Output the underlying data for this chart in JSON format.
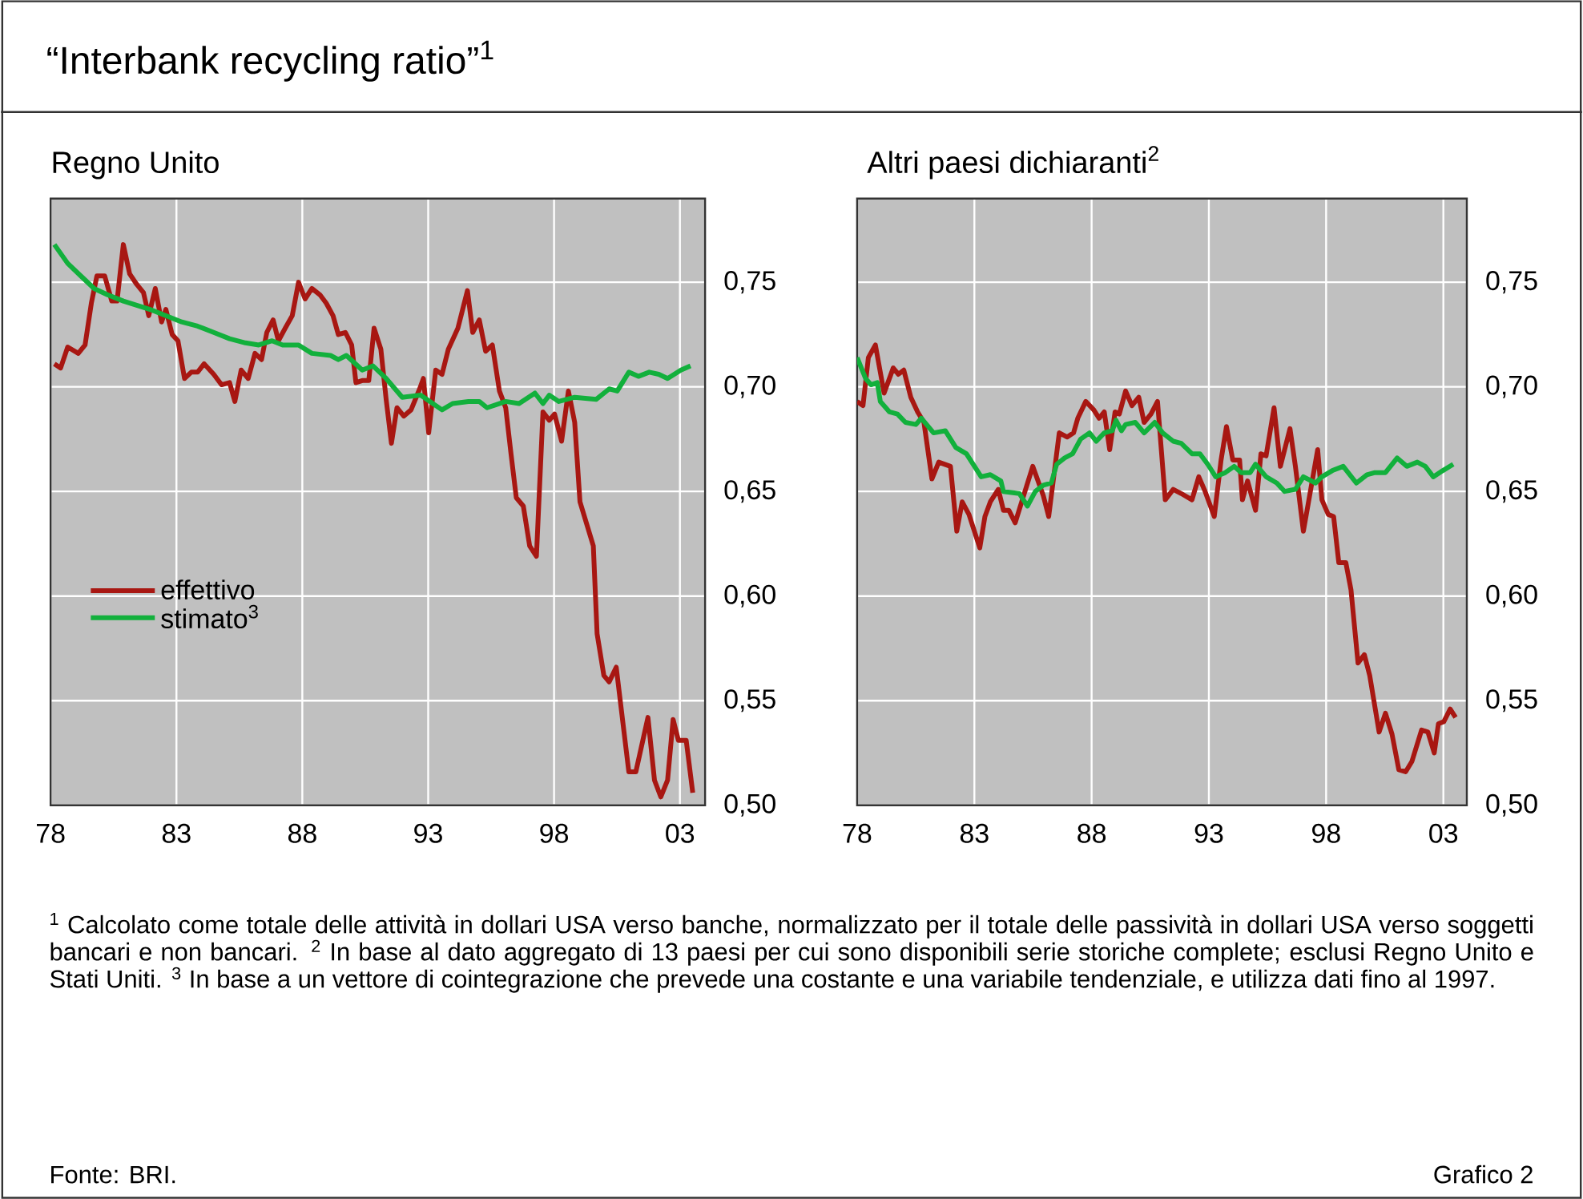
{
  "chart_data": [
    {
      "type": "line",
      "title": "“Interbank recycling ratio”$^{1}$",
      "subtitle": "Regno Unito",
      "xlim": [
        1978,
        2004
      ],
      "xticks": [
        {
          "value": 1978,
          "label": "78"
        },
        {
          "value": 1983,
          "label": "83"
        },
        {
          "value": 1988,
          "label": "88"
        },
        {
          "value": 1993,
          "label": "93"
        },
        {
          "value": 1998,
          "label": "98"
        },
        {
          "value": 2003,
          "label": "03"
        }
      ],
      "ylim": [
        0.5,
        0.79
      ],
      "yticks": [
        {
          "value": 0.5,
          "label": "0,50"
        },
        {
          "value": 0.55,
          "label": "0,55"
        },
        {
          "value": 0.6,
          "label": "0,60"
        },
        {
          "value": 0.65,
          "label": "0,65"
        },
        {
          "value": 0.7,
          "label": "0,70"
        },
        {
          "value": 0.75,
          "label": "0,75"
        }
      ],
      "grid": true,
      "legend": "left",
      "series": [
        {
          "name": "effettivo",
          "color": "#a81712",
          "x": [
            1978.15,
            1978.4,
            1978.68,
            1979.1,
            1979.37,
            1979.62,
            1979.84,
            1980.15,
            1980.43,
            1980.64,
            1980.89,
            1981.14,
            1981.42,
            1981.69,
            1981.9,
            1982.16,
            1982.41,
            1982.58,
            1982.83,
            1983.06,
            1983.32,
            1983.59,
            1983.84,
            1984.1,
            1984.48,
            1984.79,
            1985.11,
            1985.32,
            1985.57,
            1985.85,
            1986.12,
            1986.38,
            1986.59,
            1986.84,
            1987.05,
            1987.32,
            1987.6,
            1987.85,
            1988.11,
            1988.38,
            1988.7,
            1988.95,
            1989.22,
            1989.43,
            1989.71,
            1989.96,
            1990.13,
            1990.38,
            1990.64,
            1990.85,
            1991.12,
            1991.33,
            1991.54,
            1991.76,
            1992.03,
            1992.32,
            1992.66,
            1992.81,
            1993.02,
            1993.3,
            1993.55,
            1993.8,
            1994.18,
            1994.56,
            1994.77,
            1995.03,
            1995.28,
            1995.55,
            1995.83,
            1996.08,
            1996.29,
            1996.5,
            1996.78,
            1997.03,
            1997.3,
            1997.56,
            1997.81,
            1998.02,
            1998.3,
            1998.57,
            1998.82,
            1999.03,
            1999.56,
            1999.71,
            1999.98,
            2000.19,
            2000.47,
            2000.72,
            2000.97,
            2001.25,
            2001.73,
            2001.99,
            2002.24,
            2002.51,
            2002.73,
            2002.94,
            2003.25,
            2003.51
          ],
          "values": [
            0.711,
            0.709,
            0.719,
            0.716,
            0.72,
            0.74,
            0.753,
            0.753,
            0.741,
            0.741,
            0.768,
            0.754,
            0.749,
            0.745,
            0.734,
            0.747,
            0.731,
            0.737,
            0.725,
            0.722,
            0.704,
            0.707,
            0.707,
            0.711,
            0.706,
            0.701,
            0.702,
            0.693,
            0.708,
            0.704,
            0.716,
            0.713,
            0.726,
            0.732,
            0.722,
            0.728,
            0.734,
            0.75,
            0.742,
            0.747,
            0.744,
            0.74,
            0.734,
            0.725,
            0.726,
            0.72,
            0.702,
            0.703,
            0.703,
            0.728,
            0.718,
            0.694,
            0.673,
            0.69,
            0.686,
            0.689,
            0.699,
            0.704,
            0.678,
            0.708,
            0.706,
            0.718,
            0.728,
            0.746,
            0.726,
            0.732,
            0.717,
            0.72,
            0.698,
            0.69,
            0.668,
            0.647,
            0.643,
            0.624,
            0.619,
            0.688,
            0.684,
            0.687,
            0.674,
            0.698,
            0.683,
            0.645,
            0.624,
            0.582,
            0.562,
            0.559,
            0.566,
            0.541,
            0.516,
            0.516,
            0.542,
            0.512,
            0.504,
            0.512,
            0.541,
            0.531,
            0.531,
            0.506
          ]
        },
        {
          "name": "stimato$^{3}$",
          "color": "#12b03c",
          "x": [
            1978.15,
            1978.68,
            1979.2,
            1979.73,
            1980.26,
            1980.89,
            1981.42,
            1981.95,
            1982.58,
            1983.21,
            1983.84,
            1984.48,
            1985.11,
            1985.74,
            1986.27,
            1986.8,
            1987.22,
            1987.85,
            1988.38,
            1989.12,
            1989.43,
            1989.75,
            1990.38,
            1990.81,
            1991.33,
            1991.97,
            1992.7,
            1993.55,
            1993.97,
            1994.6,
            1995.03,
            1995.34,
            1996.08,
            1996.61,
            1997.24,
            1997.56,
            1997.81,
            1998.19,
            1998.82,
            1999.67,
            2000.19,
            2000.51,
            2000.97,
            2001.35,
            2001.78,
            2002.16,
            2002.51,
            2003.04,
            2003.42
          ],
          "values": [
            0.768,
            0.759,
            0.753,
            0.747,
            0.744,
            0.741,
            0.739,
            0.737,
            0.734,
            0.731,
            0.729,
            0.726,
            0.723,
            0.721,
            0.72,
            0.722,
            0.72,
            0.72,
            0.716,
            0.715,
            0.713,
            0.715,
            0.708,
            0.71,
            0.704,
            0.695,
            0.696,
            0.689,
            0.692,
            0.693,
            0.693,
            0.69,
            0.693,
            0.692,
            0.697,
            0.692,
            0.696,
            0.693,
            0.695,
            0.694,
            0.699,
            0.698,
            0.707,
            0.705,
            0.707,
            0.706,
            0.704,
            0.708,
            0.71
          ]
        }
      ],
      "annotations": [
        "$^{1}$ Calcolato come totale delle attività in dollari USA verso banche, normalizzato per il totale delle passività in dollari USA verso soggetti bancari e non bancari. $^{2}$ In base al dato aggregato di 13 paesi per cui sono disponibili serie storiche complete; esclusi Regno Unito e Stati Uniti. $^{3}$ In base a un vettore di cointegrazione che prevede una costante e una variabile tendenziale, e utilizza dati fino al 1997.",
        "Fonte: BRI.",
        "Grafico 2"
      ]
    },
    {
      "type": "line",
      "title": "Altri paesi dichiaranti$^{2}$",
      "xlim": [
        1978,
        2004
      ],
      "xticks": [
        {
          "value": 1978,
          "label": "78"
        },
        {
          "value": 1983,
          "label": "83"
        },
        {
          "value": 1988,
          "label": "88"
        },
        {
          "value": 1993,
          "label": "93"
        },
        {
          "value": 1998,
          "label": "98"
        },
        {
          "value": 2003,
          "label": "03"
        }
      ],
      "ylim": [
        0.5,
        0.79
      ],
      "yticks": [
        {
          "value": 0.5,
          "label": "0,50"
        },
        {
          "value": 0.55,
          "label": "0,55"
        },
        {
          "value": 0.6,
          "label": "0,60"
        },
        {
          "value": 0.65,
          "label": "0,65"
        },
        {
          "value": 0.7,
          "label": "0,70"
        },
        {
          "value": 0.75,
          "label": "0,75"
        }
      ],
      "grid": true,
      "series": [
        {
          "color": "#a81712",
          "x": [
            1978.0,
            1978.25,
            1978.48,
            1978.78,
            1979.15,
            1979.54,
            1979.76,
            1979.99,
            1980.29,
            1980.58,
            1980.85,
            1981.19,
            1981.48,
            1981.98,
            1982.25,
            1982.48,
            1982.77,
            1983.23,
            1983.45,
            1983.68,
            1984.02,
            1984.24,
            1984.47,
            1984.74,
            1985.49,
            1985.94,
            1986.17,
            1986.62,
            1986.96,
            1987.23,
            1987.41,
            1987.75,
            1988.09,
            1988.32,
            1988.54,
            1988.77,
            1989.0,
            1989.18,
            1989.45,
            1989.72,
            1990.01,
            1990.24,
            1990.53,
            1990.81,
            1991.14,
            1991.48,
            1991.82,
            1992.28,
            1992.57,
            1992.84,
            1993.23,
            1993.52,
            1993.75,
            1994.02,
            1994.31,
            1994.43,
            1994.65,
            1994.99,
            1995.22,
            1995.44,
            1995.78,
            1996.05,
            1996.46,
            1996.69,
            1997.03,
            1997.25,
            1997.64,
            1997.82,
            1998.09,
            1998.32,
            1998.54,
            1998.84,
            1999.06,
            1999.36,
            1999.63,
            1999.86,
            2000.26,
            2000.53,
            2000.81,
            2001.1,
            2001.39,
            2001.66,
            2002.07,
            2002.34,
            2002.61,
            2002.79,
            2003.02,
            2003.29,
            2003.52
          ],
          "values": [
            0.693,
            0.691,
            0.714,
            0.72,
            0.697,
            0.709,
            0.706,
            0.708,
            0.695,
            0.688,
            0.683,
            0.656,
            0.664,
            0.662,
            0.631,
            0.645,
            0.639,
            0.623,
            0.638,
            0.645,
            0.651,
            0.641,
            0.641,
            0.635,
            0.662,
            0.648,
            0.638,
            0.678,
            0.676,
            0.678,
            0.685,
            0.693,
            0.689,
            0.685,
            0.688,
            0.67,
            0.688,
            0.687,
            0.698,
            0.691,
            0.695,
            0.683,
            0.687,
            0.693,
            0.646,
            0.651,
            0.649,
            0.646,
            0.657,
            0.65,
            0.638,
            0.665,
            0.681,
            0.665,
            0.665,
            0.646,
            0.655,
            0.641,
            0.668,
            0.667,
            0.69,
            0.662,
            0.68,
            0.662,
            0.631,
            0.645,
            0.67,
            0.646,
            0.639,
            0.638,
            0.616,
            0.616,
            0.603,
            0.568,
            0.572,
            0.562,
            0.535,
            0.544,
            0.534,
            0.517,
            0.516,
            0.521,
            0.536,
            0.535,
            0.525,
            0.539,
            0.54,
            0.546,
            0.542
          ]
        },
        {
          "color": "#12b03c",
          "x": [
            1978.0,
            1978.36,
            1978.59,
            1978.86,
            1978.99,
            1979.38,
            1979.72,
            1980.06,
            1980.51,
            1980.74,
            1981.26,
            1981.76,
            1982.21,
            1982.66,
            1983.29,
            1983.68,
            1984.13,
            1984.24,
            1984.92,
            1985.26,
            1985.6,
            1985.94,
            1986.28,
            1986.51,
            1986.85,
            1987.19,
            1987.53,
            1987.91,
            1988.2,
            1988.54,
            1988.88,
            1989.04,
            1989.27,
            1989.45,
            1989.86,
            1990.24,
            1990.69,
            1991.03,
            1991.48,
            1991.82,
            1992.28,
            1992.62,
            1992.95,
            1993.29,
            1993.7,
            1994.08,
            1994.37,
            1994.76,
            1994.99,
            1995.44,
            1995.9,
            1996.23,
            1996.69,
            1997.03,
            1997.55,
            1997.82,
            1998.27,
            1998.73,
            1999.29,
            1999.74,
            2000.08,
            2000.53,
            2001.03,
            2001.44,
            2001.89,
            2002.23,
            2002.57,
            2002.98,
            2003.42
          ],
          "values": [
            0.714,
            0.704,
            0.701,
            0.702,
            0.693,
            0.688,
            0.687,
            0.683,
            0.682,
            0.685,
            0.678,
            0.679,
            0.671,
            0.668,
            0.657,
            0.658,
            0.655,
            0.65,
            0.649,
            0.643,
            0.65,
            0.653,
            0.654,
            0.663,
            0.666,
            0.668,
            0.675,
            0.678,
            0.674,
            0.678,
            0.679,
            0.684,
            0.679,
            0.682,
            0.683,
            0.678,
            0.683,
            0.678,
            0.674,
            0.673,
            0.668,
            0.668,
            0.663,
            0.657,
            0.659,
            0.662,
            0.659,
            0.659,
            0.663,
            0.657,
            0.654,
            0.65,
            0.651,
            0.657,
            0.654,
            0.657,
            0.66,
            0.662,
            0.654,
            0.658,
            0.659,
            0.659,
            0.666,
            0.662,
            0.664,
            0.662,
            0.657,
            0.66,
            0.663
          ]
        }
      ]
    }
  ]
}
